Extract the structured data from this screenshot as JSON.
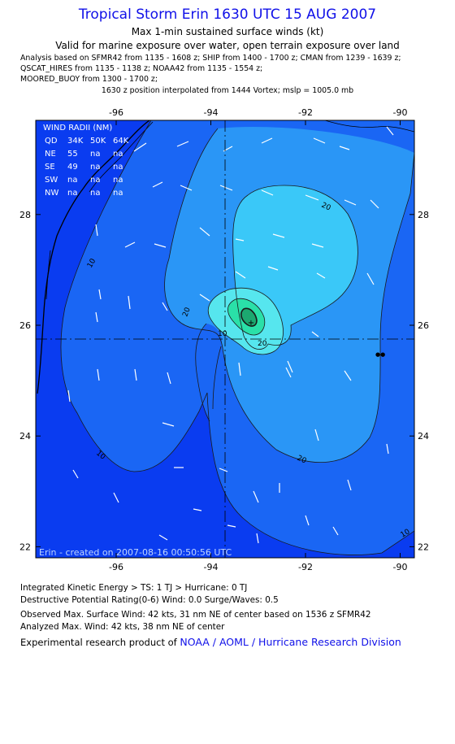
{
  "header": {
    "title": "Tropical Storm Erin 1630 UTC 15 AUG 2007",
    "subtitle1": "Max 1-min sustained surface winds (kt)",
    "subtitle2": "Valid for marine exposure over water, open terrain exposure over land",
    "analysis_lines": [
      "Analysis based on  SFMR42 from 1135 - 1608 z;  SHIP from 1400 - 1700 z;  CMAN from 1239 - 1639 z;",
      "QSCAT_HIRES from 1135 - 1138 z;  NOAA42 from 1135 - 1554 z;",
      "MOORED_BUOY from 1300 - 1700 z;",
      "1630 z position interpolated from 1444 Vortex; mslp = 1005.0 mb"
    ]
  },
  "map": {
    "lon_ticks": [
      -96,
      -94,
      -92,
      -90
    ],
    "lat_ticks": [
      28,
      26,
      24,
      22
    ],
    "lon_tick_labels": [
      "-96",
      "-94",
      "-92",
      "-90"
    ],
    "lat_tick_labels": [
      "28",
      "26",
      "24",
      "22"
    ],
    "lon_range": [
      -97.7,
      -89.7
    ],
    "lat_range": [
      21.8,
      29.7
    ],
    "center": {
      "lon": -94.0,
      "lat": 25.85
    },
    "contour_labels": [
      "10",
      "20",
      "20",
      "20",
      "10",
      "20",
      "10",
      "10"
    ],
    "created_label": "Erin - created on 2007-08-16 00:50:56 UTC",
    "colors": {
      "outer": "#0a3cf0",
      "level10": "#1a66f4",
      "level20": "#2a96f6",
      "level30": "#3ac8f8",
      "level35": "#56e6ee",
      "level40": "#2ae0a8",
      "level42": "#1ca870",
      "land": "#0a3cf0"
    }
  },
  "wind_radii": {
    "title": "WIND RADII (NM)",
    "header": [
      "QD",
      "34K",
      "50K",
      "64K"
    ],
    "rows": [
      [
        "NE",
        "55",
        "na",
        "na"
      ],
      [
        "SE",
        "49",
        "na",
        "na"
      ],
      [
        "SW",
        "na",
        "na",
        "na"
      ],
      [
        "NW",
        "na",
        "na",
        "na"
      ]
    ]
  },
  "footer": {
    "ike": "Integrated Kinetic Energy > TS: 1 TJ   > Hurricane: 0 TJ",
    "dpr": "Destructive Potential Rating(0-6)   Wind: 0.0 Surge/Waves: 0.5",
    "observed": "Observed Max. Surface Wind: 42 kts, 31 nm NE of center based on 1536 z SFMR42",
    "analyzed": "Analyzed Max. Wind: 42 kts, 38 nm NE of center",
    "experimental_prefix": "Experimental research product of ",
    "organization": "NOAA / AOML / Hurricane Research Division"
  }
}
